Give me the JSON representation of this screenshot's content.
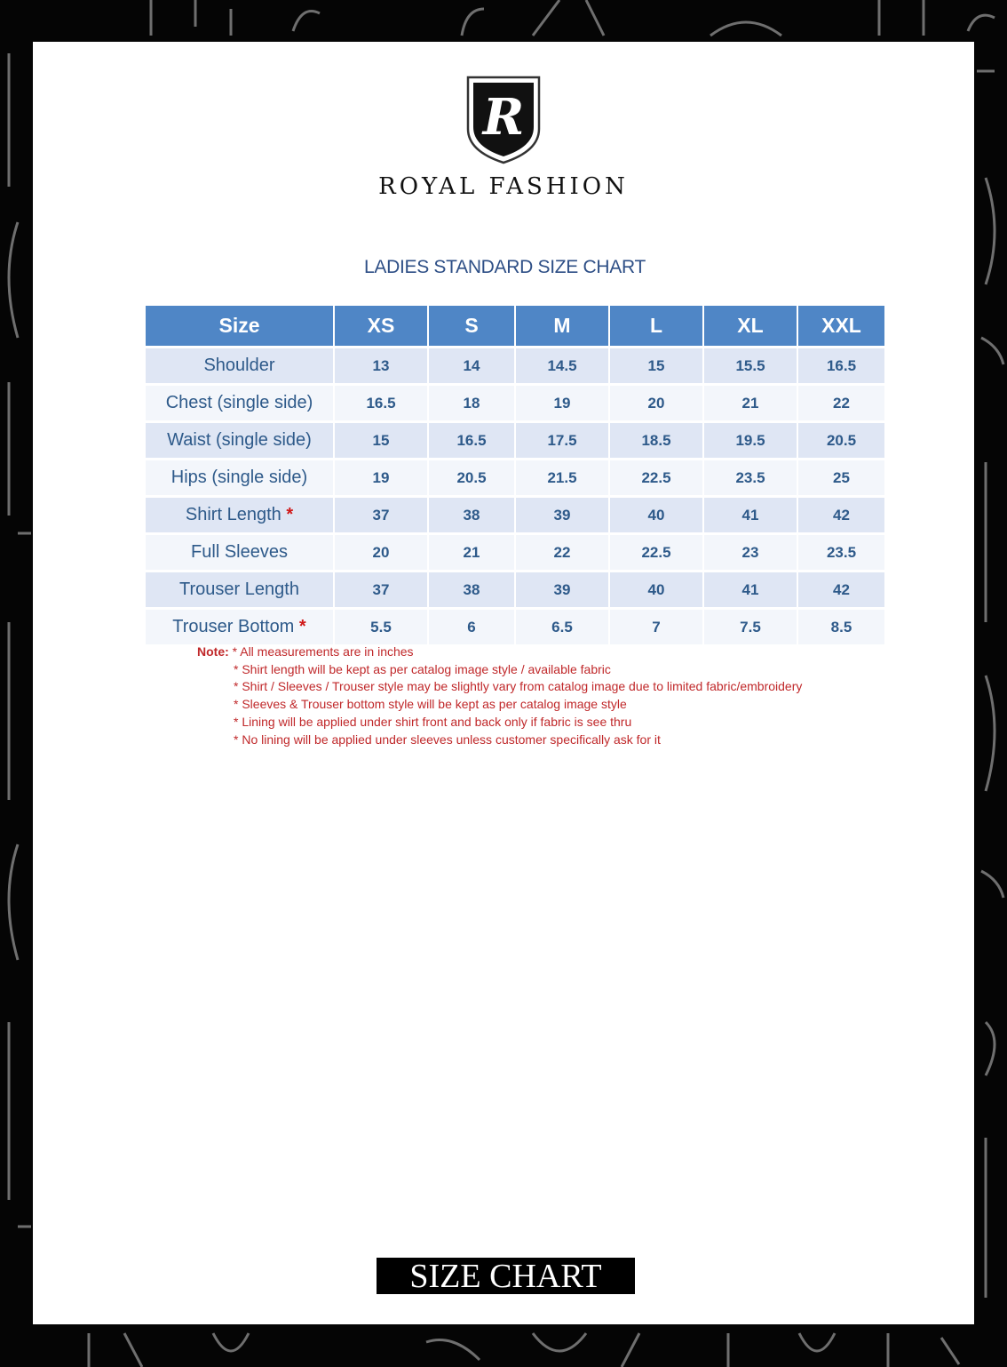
{
  "brand": {
    "logo_letter": "R",
    "name": "ROYAL FASHION"
  },
  "title": "LADIES STANDARD SIZE CHART",
  "table": {
    "headers": [
      "Size",
      "XS",
      "S",
      "M",
      "L",
      "XL",
      "XXL"
    ],
    "rows": [
      {
        "label": "Shoulder",
        "star": "",
        "values": [
          "13",
          "14",
          "14.5",
          "15",
          "15.5",
          "16.5"
        ]
      },
      {
        "label": "Chest (single side)",
        "star": "",
        "values": [
          "16.5",
          "18",
          "19",
          "20",
          "21",
          "22"
        ]
      },
      {
        "label": "Waist (single side)",
        "star": "",
        "values": [
          "15",
          "16.5",
          "17.5",
          "18.5",
          "19.5",
          "20.5"
        ]
      },
      {
        "label": "Hips (single side)",
        "star": "",
        "values": [
          "19",
          "20.5",
          "21.5",
          "22.5",
          "23.5",
          "25"
        ]
      },
      {
        "label": "Shirt Length",
        "star": "*",
        "values": [
          "37",
          "38",
          "39",
          "40",
          "41",
          "42"
        ]
      },
      {
        "label": "Full Sleeves",
        "star": "",
        "values": [
          "20",
          "21",
          "22",
          "22.5",
          "23",
          "23.5"
        ]
      },
      {
        "label": "Trouser Length",
        "star": "",
        "values": [
          "37",
          "38",
          "39",
          "40",
          "41",
          "42"
        ]
      },
      {
        "label": "Trouser Bottom",
        "star": "*",
        "values": [
          "5.5",
          "6",
          "6.5",
          "7",
          "7.5",
          "8.5"
        ]
      }
    ]
  },
  "notes": {
    "label": "Note:",
    "items": [
      "* All measurements  are in inches",
      "* Shirt  length will be kept  as per catalog image  style / available fabric",
      "* Shirt  / Sleeves / Trouser style may be slightly vary from  catalog image due to limited fabric/embroidery",
      "* Sleeves & Trouser bottom  style will be kept  as per catalog image style",
      "* Lining will be applied under  shirt front  and back only  if fabric is see thru",
      "* No lining will be applied under  sleeves unless customer  specifically ask for it"
    ]
  },
  "footer_badge": "SIZE CHART",
  "colors": {
    "header": "#4f86c6",
    "text": "#2e5a8a",
    "note": "#c0282a",
    "title": "#2e4f86"
  }
}
